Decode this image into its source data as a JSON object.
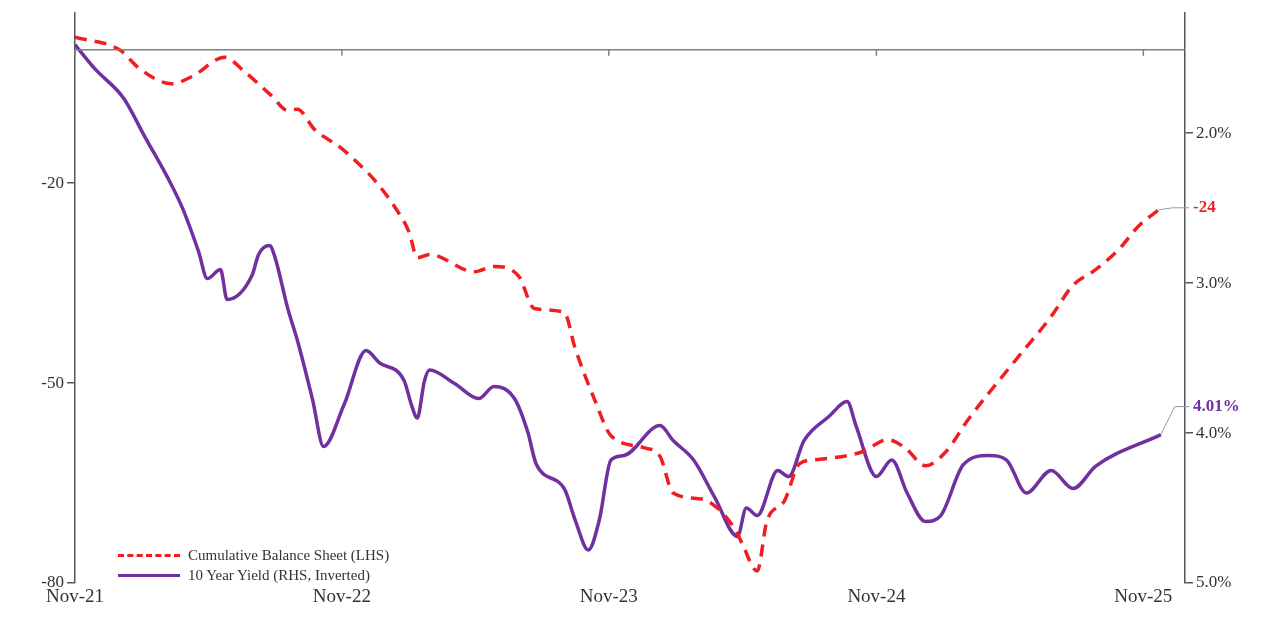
{
  "chart_data": {
    "type": "line",
    "xlim": [
      "2021-11-01",
      "2025-12-28"
    ],
    "xticks": [
      {
        "value": "2021-11-01",
        "label": "Nov-21"
      },
      {
        "value": "2022-11-01",
        "label": "Nov-22"
      },
      {
        "value": "2023-11-01",
        "label": "Nov-23"
      },
      {
        "value": "2024-11-01",
        "label": "Nov-24"
      },
      {
        "value": "2025-11-01",
        "label": "Nov-25"
      }
    ],
    "ylim": [
      -80,
      5.5
    ],
    "yticks": [
      -80,
      -50,
      -20
    ],
    "y2lim": [
      5.0,
      1.2
    ],
    "y2ticks": [
      {
        "value": 2.0,
        "label": "2.0%"
      },
      {
        "value": 3.0,
        "label": "3.0%"
      },
      {
        "value": 4.0,
        "label": "4.0%"
      },
      {
        "value": 5.0,
        "label": "5.0%"
      }
    ],
    "grid": false,
    "legend": "bottom left",
    "marker": "none",
    "ref_lines": [
      {
        "axis": "y",
        "value": 0,
        "color": "#7f7f7f"
      }
    ],
    "series": [
      {
        "name": "Cumulative Balance Sheet (LHS)",
        "color": "#f01e1e",
        "line_style": "dashed",
        "axis": "y",
        "x": [
          "2021-11-01",
          "2022-01-01",
          "2022-01-28",
          "2022-03-13",
          "2022-04-10",
          "2022-05-25",
          "2022-06-19",
          "2022-07-28",
          "2022-08-19",
          "2022-09-01",
          "2022-09-25",
          "2022-10-28",
          "2022-11-25",
          "2022-12-16",
          "2023-01-13",
          "2023-02-01",
          "2023-02-12",
          "2023-03-01",
          "2023-05-01",
          "2023-05-28",
          "2023-07-01",
          "2023-07-22",
          "2023-09-01",
          "2023-09-16",
          "2023-10-13",
          "2023-11-04",
          "2023-12-19",
          "2024-01-10",
          "2024-01-28",
          "2024-03-07",
          "2024-03-28",
          "2024-04-22",
          "2024-05-01",
          "2024-05-22",
          "2024-06-04",
          "2024-06-28",
          "2024-07-19",
          "2024-08-10",
          "2024-10-13",
          "2024-11-16",
          "2024-12-10",
          "2025-01-07",
          "2025-02-04",
          "2025-03-07",
          "2025-05-04",
          "2025-06-28",
          "2025-07-28",
          "2025-08-25",
          "2025-09-28",
          "2025-10-25",
          "2025-11-22"
        ],
        "values": [
          1.9,
          0.0,
          -2.8,
          -5.1,
          -4.0,
          -1.1,
          -3.1,
          -6.9,
          -9.1,
          -8.9,
          -12.0,
          -14.5,
          -17.2,
          -19.6,
          -23.7,
          -27.4,
          -31.2,
          -30.7,
          -33.3,
          -32.5,
          -34.0,
          -38.8,
          -39.4,
          -44.8,
          -52.6,
          -57.9,
          -59.7,
          -61.0,
          -66.5,
          -67.4,
          -68.7,
          -72.0,
          -74.0,
          -78.2,
          -70.8,
          -67.7,
          -62.1,
          -61.5,
          -60.3,
          -58.5,
          -59.7,
          -62.4,
          -60.3,
          -55.4,
          -47.4,
          -40.0,
          -35.3,
          -33.2,
          -30.0,
          -26.5,
          -24
        ],
        "value_labels": [
          null,
          null,
          null,
          null,
          null,
          null,
          null,
          null,
          null,
          null,
          null,
          null,
          null,
          null,
          null,
          null,
          null,
          null,
          null,
          null,
          null,
          null,
          null,
          null,
          null,
          null,
          null,
          null,
          null,
          null,
          null,
          null,
          null,
          null,
          null,
          null,
          null,
          null,
          null,
          null,
          null,
          null,
          null,
          null,
          null,
          null,
          null,
          null,
          null,
          null,
          "-24"
        ]
      },
      {
        "name": "10 Year Yield (RHS, Inverted)",
        "color": "#7030a0",
        "line_style": "solid",
        "axis": "y2",
        "x": [
          "2021-11-01",
          "2021-11-28",
          "2022-01-07",
          "2022-02-04",
          "2022-03-07",
          "2022-03-28",
          "2022-04-19",
          "2022-05-01",
          "2022-05-19",
          "2022-05-28",
          "2022-07-01",
          "2022-07-10",
          "2022-07-25",
          "2022-08-01",
          "2022-08-19",
          "2022-09-01",
          "2022-09-22",
          "2022-10-07",
          "2022-11-04",
          "2022-12-04",
          "2022-12-22",
          "2023-01-25",
          "2023-02-04",
          "2023-02-12",
          "2023-02-22",
          "2023-03-01",
          "2023-04-04",
          "2023-05-07",
          "2023-05-28",
          "2023-06-25",
          "2023-07-13",
          "2023-07-25",
          "2023-09-01",
          "2023-09-16",
          "2023-10-04",
          "2023-10-19",
          "2023-11-04",
          "2023-11-22",
          "2024-01-10",
          "2024-01-28",
          "2024-02-25",
          "2024-03-25",
          "2024-04-25",
          "2024-05-07",
          "2024-05-22",
          "2024-06-19",
          "2024-07-04",
          "2024-07-25",
          "2024-08-28",
          "2024-09-22",
          "2024-10-04",
          "2024-11-01",
          "2024-11-22",
          "2024-12-13",
          "2025-01-07",
          "2025-01-28",
          "2025-02-28",
          "2025-04-04",
          "2025-04-28",
          "2025-05-25",
          "2025-06-28",
          "2025-07-28",
          "2025-08-28",
          "2025-11-25"
        ],
        "values": [
          1.41,
          1.57,
          1.77,
          2.02,
          2.29,
          2.5,
          2.79,
          2.97,
          2.91,
          3.11,
          2.95,
          2.81,
          2.75,
          2.82,
          3.17,
          3.38,
          3.78,
          4.09,
          3.81,
          3.45,
          3.53,
          3.65,
          3.81,
          3.9,
          3.65,
          3.58,
          3.67,
          3.77,
          3.69,
          3.77,
          3.99,
          4.21,
          4.37,
          4.58,
          4.78,
          4.58,
          4.18,
          4.15,
          3.95,
          4.05,
          4.18,
          4.43,
          4.69,
          4.5,
          4.55,
          4.25,
          4.29,
          4.05,
          3.89,
          3.79,
          3.95,
          4.29,
          4.18,
          4.4,
          4.59,
          4.55,
          4.21,
          4.15,
          4.18,
          4.4,
          4.25,
          4.37,
          4.22,
          4.01
        ],
        "value_labels": [
          null,
          null,
          null,
          null,
          null,
          null,
          null,
          null,
          null,
          null,
          null,
          null,
          null,
          null,
          null,
          null,
          null,
          null,
          null,
          null,
          null,
          null,
          null,
          null,
          null,
          null,
          null,
          null,
          null,
          null,
          null,
          null,
          null,
          null,
          null,
          null,
          null,
          null,
          null,
          null,
          null,
          null,
          null,
          null,
          null,
          null,
          null,
          null,
          null,
          null,
          null,
          null,
          null,
          null,
          null,
          null,
          null,
          null,
          null,
          null,
          null,
          null,
          null,
          "4.01%"
        ]
      }
    ]
  }
}
